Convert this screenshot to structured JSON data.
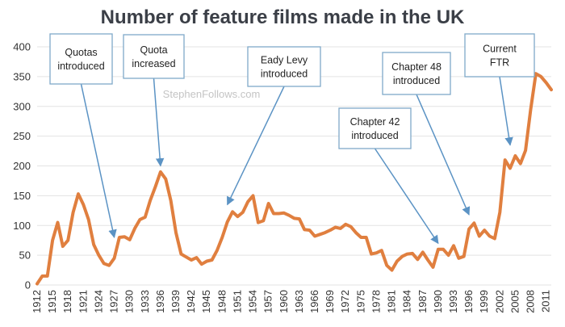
{
  "chart_data": {
    "type": "line",
    "title": "Number of feature films made in the UK",
    "watermark": "StephenFollows.com",
    "xlabel": "",
    "ylabel": "",
    "ylim": [
      0,
      400
    ],
    "xlim": [
      1912,
      2012
    ],
    "yticks": [
      0,
      50,
      100,
      150,
      200,
      250,
      300,
      350,
      400
    ],
    "xticks": [
      "1912",
      "1915",
      "1918",
      "1921",
      "1924",
      "1927",
      "1930",
      "1933",
      "1936",
      "1939",
      "1942",
      "1945",
      "1948",
      "1951",
      "1954",
      "1957",
      "1960",
      "1963",
      "1966",
      "1969",
      "1972",
      "1975",
      "1978",
      "1981",
      "1984",
      "1987",
      "1990",
      "1993",
      "1996",
      "1999",
      "2002",
      "2005",
      "2008",
      "2011"
    ],
    "grid": true,
    "color": "#e07f3f",
    "series": [
      {
        "name": "Feature films made in the UK",
        "x": [
          1912,
          1913,
          1914,
          1915,
          1916,
          1917,
          1918,
          1919,
          1920,
          1921,
          1922,
          1923,
          1924,
          1925,
          1926,
          1927,
          1928,
          1929,
          1930,
          1931,
          1932,
          1933,
          1934,
          1935,
          1936,
          1937,
          1938,
          1939,
          1940,
          1941,
          1942,
          1943,
          1944,
          1945,
          1946,
          1947,
          1948,
          1949,
          1950,
          1951,
          1952,
          1953,
          1954,
          1955,
          1956,
          1957,
          1958,
          1959,
          1960,
          1961,
          1962,
          1963,
          1964,
          1965,
          1966,
          1967,
          1968,
          1969,
          1970,
          1971,
          1972,
          1973,
          1974,
          1975,
          1976,
          1977,
          1978,
          1979,
          1980,
          1981,
          1982,
          1983,
          1984,
          1985,
          1986,
          1987,
          1988,
          1989,
          1990,
          1991,
          1992,
          1993,
          1994,
          1995,
          1996,
          1997,
          1998,
          1999,
          2000,
          2001,
          2002,
          2003,
          2004,
          2005,
          2006,
          2007,
          2008,
          2009,
          2010,
          2011,
          2012
        ],
        "values": [
          2,
          15,
          15,
          75,
          105,
          65,
          75,
          122,
          153,
          135,
          110,
          68,
          50,
          36,
          33,
          45,
          80,
          81,
          76,
          95,
          110,
          114,
          142,
          165,
          190,
          178,
          142,
          88,
          52,
          47,
          42,
          46,
          35,
          40,
          42,
          58,
          80,
          106,
          123,
          115,
          122,
          140,
          150,
          105,
          108,
          137,
          120,
          120,
          121,
          117,
          112,
          111,
          93,
          92,
          82,
          85,
          88,
          92,
          97,
          95,
          102,
          98,
          88,
          80,
          80,
          52,
          54,
          58,
          33,
          25,
          40,
          48,
          52,
          53,
          43,
          55,
          42,
          30,
          60,
          60,
          50,
          66,
          45,
          48,
          94,
          104,
          82,
          92,
          82,
          78,
          122,
          210,
          196,
          217,
          204,
          226,
          295,
          355,
          350,
          340,
          328
        ]
      }
    ],
    "annotations": [
      {
        "lines": [
          "Quotas",
          "introduced"
        ],
        "year": 1927,
        "value": 80
      },
      {
        "lines": [
          "Quota",
          "increased"
        ],
        "year": 1936,
        "value": 200
      },
      {
        "lines": [
          "Eady Levy",
          "introduced"
        ],
        "year": 1949,
        "value": 135
      },
      {
        "lines": [
          "Chapter 42",
          "introduced"
        ],
        "year": 1990,
        "value": 70
      },
      {
        "lines": [
          "Chapter 48",
          "introduced"
        ],
        "year": 1996,
        "value": 118
      },
      {
        "lines": [
          "Current",
          "FTR"
        ],
        "year": 2004,
        "value": 235
      }
    ]
  }
}
